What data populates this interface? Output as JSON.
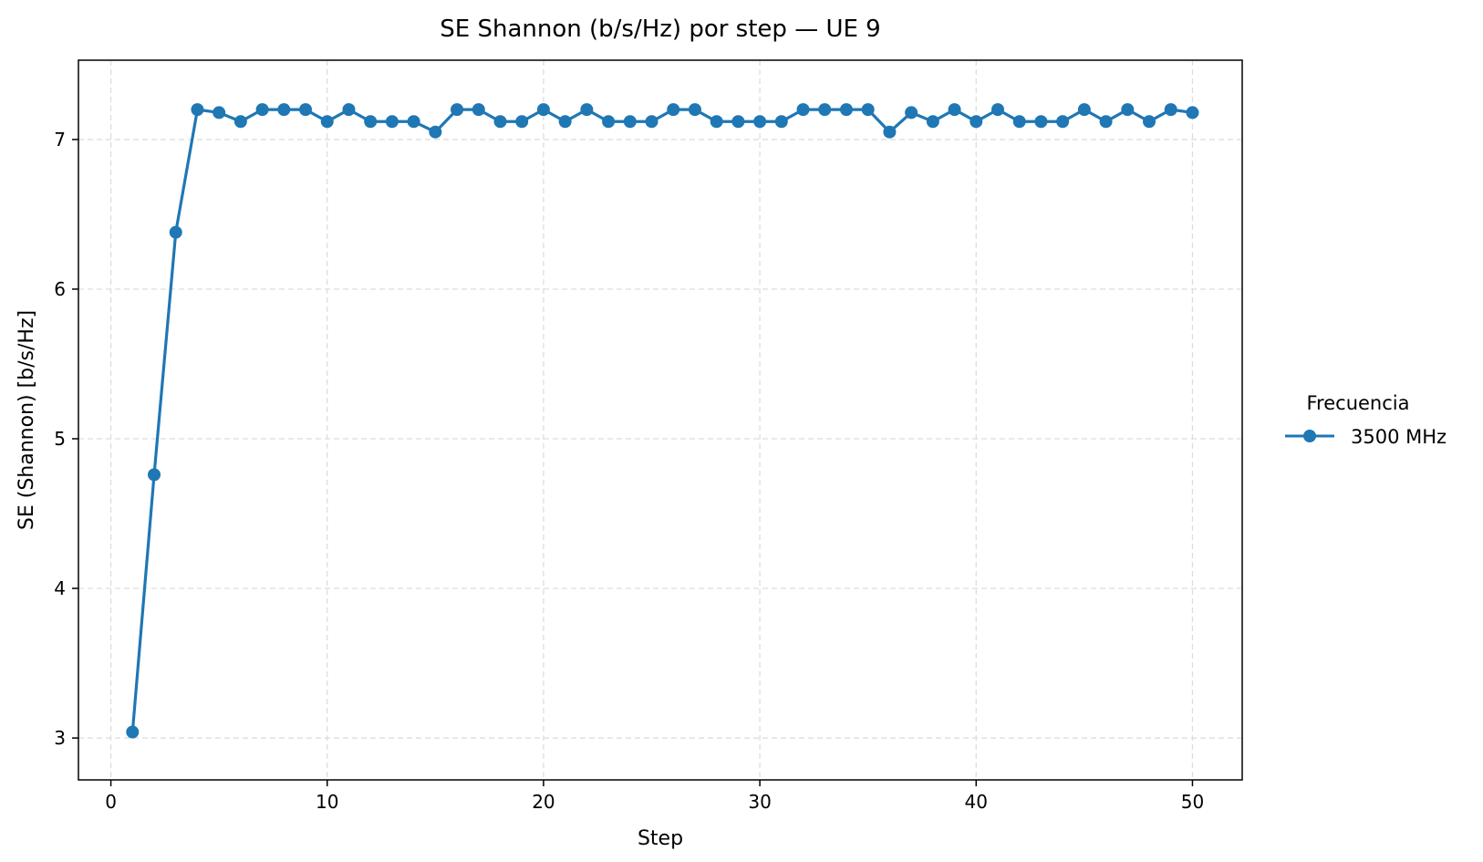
{
  "chart_data": {
    "type": "line",
    "title": "SE Shannon (b/s/Hz) por step — UE 9",
    "xlabel": "Step",
    "ylabel": "SE (Shannon) [b/s/Hz]",
    "xlim": [
      -1.5,
      52.3
    ],
    "ylim": [
      2.72,
      7.53
    ],
    "xticks": [
      0,
      10,
      20,
      30,
      40,
      50
    ],
    "yticks": [
      3,
      4,
      5,
      6,
      7
    ],
    "grid": true,
    "legend": {
      "title": "Frecuencia",
      "placement": "right-outside"
    },
    "x": [
      1,
      2,
      3,
      4,
      5,
      6,
      7,
      8,
      9,
      10,
      11,
      12,
      13,
      14,
      15,
      16,
      17,
      18,
      19,
      20,
      21,
      22,
      23,
      24,
      25,
      26,
      27,
      28,
      29,
      30,
      31,
      32,
      33,
      34,
      35,
      36,
      37,
      38,
      39,
      40,
      41,
      42,
      43,
      44,
      45,
      46,
      47,
      48,
      49,
      50
    ],
    "series": [
      {
        "name": "3500 MHz",
        "color": "#1f77b4",
        "values": [
          3.04,
          4.76,
          6.38,
          7.2,
          7.18,
          7.12,
          7.2,
          7.2,
          7.2,
          7.12,
          7.2,
          7.12,
          7.12,
          7.12,
          7.05,
          7.2,
          7.2,
          7.12,
          7.12,
          7.2,
          7.12,
          7.2,
          7.12,
          7.12,
          7.12,
          7.2,
          7.2,
          7.12,
          7.12,
          7.12,
          7.12,
          7.2,
          7.2,
          7.2,
          7.2,
          7.05,
          7.18,
          7.12,
          7.2,
          7.12,
          7.2,
          7.12,
          7.12,
          7.12,
          7.2,
          7.12,
          7.2,
          7.12,
          7.2,
          7.18
        ]
      }
    ]
  }
}
